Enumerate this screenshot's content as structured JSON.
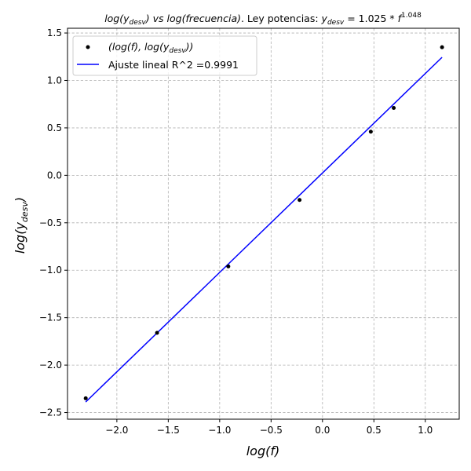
{
  "chart_data": {
    "type": "scatter",
    "title_prefix": "log(y",
    "title_sub1": "desv",
    "title_mid": ") vs ",
    "title_italic": "log(frecuencia)",
    "title_rest": ". Ley potencias: ",
    "title_eq_y": "y",
    "title_eq_sub": "desv",
    "title_eq_body": " = 1.025 * ",
    "title_eq_f": "f",
    "title_eq_exp": "1.048",
    "xlabel": "log(f)",
    "ylabel_main": "log(y",
    "ylabel_sub": "desv",
    "ylabel_close": ")",
    "xlim": [
      -2.48,
      1.33
    ],
    "ylim": [
      -2.57,
      1.55
    ],
    "xticks": [
      -2.0,
      -1.5,
      -1.0,
      -0.5,
      0.0,
      0.5,
      1.0
    ],
    "xtick_labels": [
      "−2.0",
      "−1.5",
      "−1.0",
      "−0.5",
      "0.0",
      "0.5",
      "1.0"
    ],
    "yticks": [
      -2.5,
      -2.0,
      -1.5,
      -1.0,
      -0.5,
      0.0,
      0.5,
      1.0,
      1.5
    ],
    "ytick_labels": [
      "−2.5",
      "−2.0",
      "−1.5",
      "−1.0",
      "−0.5",
      "0.0",
      "0.5",
      "1.0",
      "1.5"
    ],
    "grid": true,
    "legend_position": "top-left",
    "series": [
      {
        "name": "(log(f), log(y_desv))",
        "legend_main": "(log(f), log(y",
        "legend_sub": "desv",
        "legend_close": "))",
        "type": "scatter",
        "color": "#000000",
        "points": [
          {
            "x": -2.303,
            "y": -2.35
          },
          {
            "x": -1.609,
            "y": -1.66
          },
          {
            "x": -0.916,
            "y": -0.96
          },
          {
            "x": -0.223,
            "y": -0.26
          },
          {
            "x": 0.47,
            "y": 0.46
          },
          {
            "x": 0.693,
            "y": 0.71
          },
          {
            "x": 1.163,
            "y": 1.35
          }
        ]
      },
      {
        "name": "Ajuste lineal R^2 =0.9991",
        "type": "line",
        "color": "#0000ff",
        "slope": 1.048,
        "intercept": 0.025,
        "x_range": [
          -2.303,
          1.163
        ]
      }
    ]
  }
}
